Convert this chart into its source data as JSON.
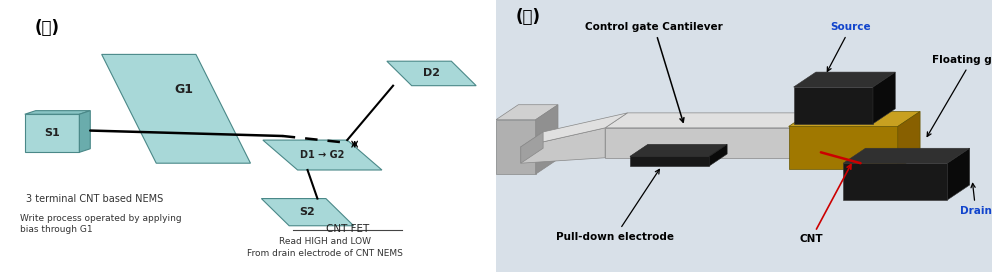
{
  "bg_color": "#ffffff",
  "left_panel_label": "(가)",
  "right_panel_label": "(나)",
  "left_texts": {
    "nems_label": "3 terminal CNT based NEMS",
    "write_label": "Write process operated by applying\nbias through G1",
    "cntfet_label": "CNT FET",
    "read_label": "Read HIGH and LOW\nFrom drain electrode of CNT NEMS",
    "S1": "S1",
    "G1": "G1",
    "D1G2": "D1 → G2",
    "S2": "S2",
    "D2": "D2"
  },
  "right_texts": {
    "control_gate": "Control gate Cantilever",
    "source": "Source",
    "floating_gate": "Floating gate",
    "pull_down": "Pull-down electrode",
    "cnt": "CNT",
    "drain": "Drain"
  },
  "teal_color": "#a8d8d8",
  "teal_mid": "#88c4c4",
  "teal_dark": "#6aacac",
  "gold_top": "#c8a020",
  "gold_face": "#a07800",
  "gold_side": "#886000",
  "black_top": "#303030",
  "black_face": "#181818",
  "black_side": "#0a0a0a",
  "gray_top": "#e0e0e0",
  "gray_face": "#c8c8c8",
  "gray_side": "#a0a0a0",
  "right_bg": "#d8e0e8"
}
